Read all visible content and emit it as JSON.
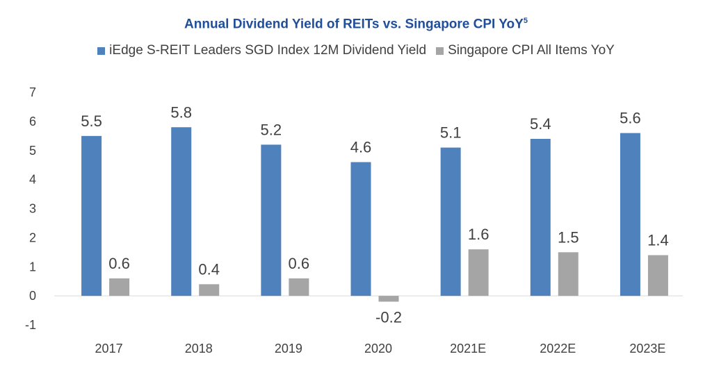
{
  "chart_data": {
    "type": "bar",
    "title": "Annual Dividend Yield of REITs vs. Singapore CPI YoY",
    "title_superscript": "5",
    "categories": [
      "2017",
      "2018",
      "2019",
      "2020",
      "2021E",
      "2022E",
      "2023E"
    ],
    "series": [
      {
        "name": "iEdge S-REIT Leaders SGD Index 12M Dividend Yield",
        "color": "#4f81bd",
        "values": [
          5.5,
          5.8,
          5.2,
          4.6,
          5.1,
          5.4,
          5.6
        ]
      },
      {
        "name": "Singapore CPI All Items YoY",
        "color": "#a5a5a5",
        "values": [
          0.6,
          0.4,
          0.6,
          -0.2,
          1.6,
          1.5,
          1.4
        ]
      }
    ],
    "ylim": [
      -1,
      7
    ],
    "yticks": [
      -1,
      0,
      1,
      2,
      3,
      4,
      5,
      6,
      7
    ],
    "grid": false,
    "legend_position": "top"
  }
}
